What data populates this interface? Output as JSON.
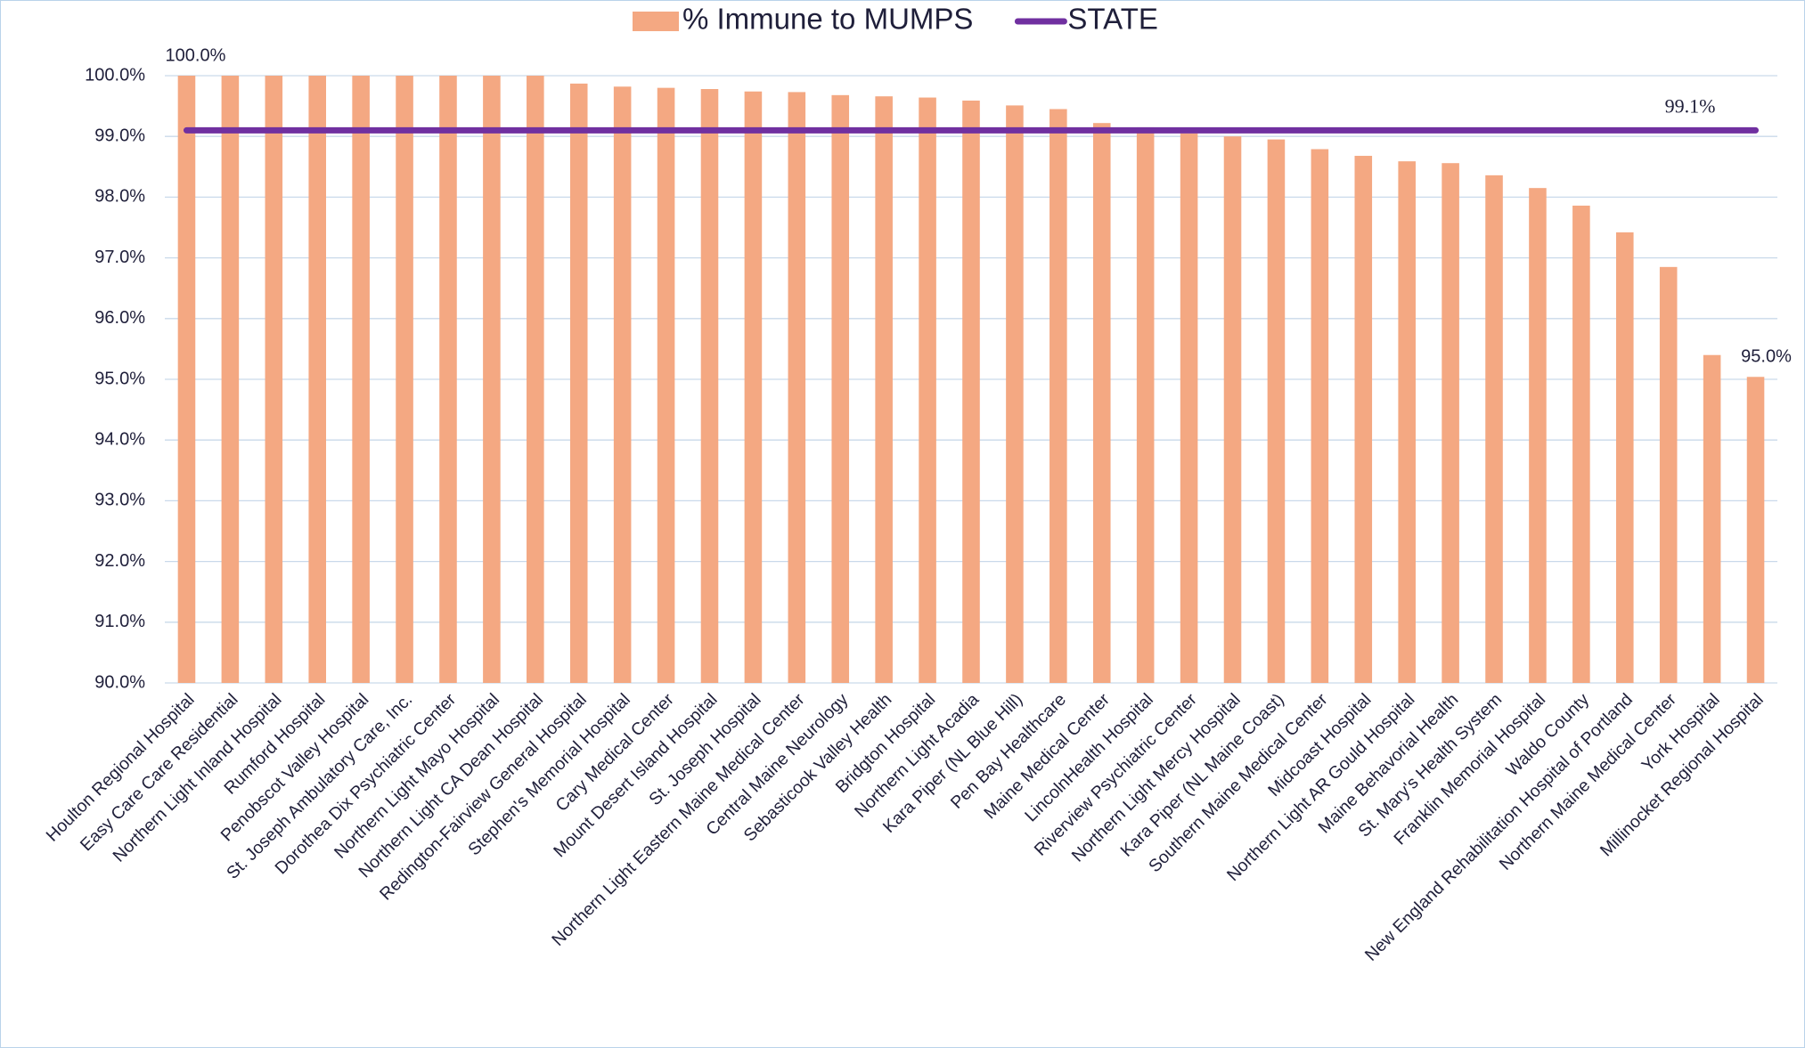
{
  "chart_data": {
    "type": "bar",
    "categories": [
      "Houlton Regional Hospital",
      "Easy Care Care Residential",
      "Northern Light Inland Hospital",
      "Rumford Hospital",
      "Penobscot Valley Hospital",
      "St. Joseph Ambulatory Care, Inc.",
      "Dorothea Dix Psychiatric Center",
      "Northern Light Mayo Hospital",
      "Northern Light CA Dean Hospital",
      "Redington-Fairview General Hospital",
      "Stephen's Memorial Hospital",
      "Cary Medical Center",
      "Mount Desert Island Hospital",
      "St. Joseph Hospital",
      "Northern Light Eastern Maine Medical Center",
      "Central Maine Neurology",
      "Sebasticook Valley Health",
      "Bridgton Hospital",
      "Northern Light Acadia",
      "Kara Piper (NL Blue Hill)",
      "Pen Bay Healthcare",
      "Maine Medical Center",
      "LincolnHealth Hospital",
      "Riverview Psychiatric Center",
      "Northern Light Mercy Hospital",
      "Kara Piper (NL Maine Coast)",
      "Southern Maine Medical Center",
      "Midcoast Hospital",
      "Northern Light AR Gould Hospital",
      "Maine Behavorial Health",
      "St. Mary's Health System",
      "Franklin Memorial Hospital",
      "Waldo County",
      "New England Rehabilitation Hospital of Portland",
      "Northern Maine Medical Center",
      "York Hospital",
      "Millinocket Regional Hospital"
    ],
    "series": [
      {
        "name": "% Immune to MUMPS",
        "color": "#f4a882",
        "values": [
          100,
          100,
          100,
          100,
          100,
          100,
          100,
          100,
          100,
          99.87,
          99.82,
          99.8,
          99.78,
          99.74,
          99.73,
          99.68,
          99.66,
          99.64,
          99.59,
          99.51,
          99.45,
          99.22,
          99.15,
          99.05,
          99.0,
          98.95,
          98.79,
          98.68,
          98.59,
          98.56,
          98.36,
          98.15,
          97.86,
          97.42,
          96.85,
          95.4,
          95.04
        ],
        "value_labels": [
          "100.0%",
          null,
          null,
          null,
          null,
          null,
          null,
          null,
          null,
          null,
          null,
          null,
          null,
          null,
          null,
          null,
          null,
          null,
          null,
          null,
          null,
          null,
          null,
          null,
          null,
          null,
          null,
          null,
          null,
          null,
          null,
          null,
          null,
          null,
          null,
          null,
          "95.0%"
        ]
      },
      {
        "name": "STATE",
        "color": "#7030a0",
        "type": "line",
        "value": 99.1,
        "value_label": "99.1%"
      }
    ],
    "ylim": [
      90,
      100
    ],
    "yticks": [
      {
        "value": 90,
        "label": "90.0%"
      },
      {
        "value": 91,
        "label": "91.0%"
      },
      {
        "value": 92,
        "label": "92.0%"
      },
      {
        "value": 93,
        "label": "93.0%"
      },
      {
        "value": 94,
        "label": "94.0%"
      },
      {
        "value": 95,
        "label": "95.0%"
      },
      {
        "value": 96,
        "label": "96.0%"
      },
      {
        "value": 97,
        "label": "97.0%"
      },
      {
        "value": 98,
        "label": "98.0%"
      },
      {
        "value": 99,
        "label": "99.0%"
      },
      {
        "value": 100,
        "label": "100.0%"
      }
    ],
    "grid": true,
    "legend": "top"
  }
}
